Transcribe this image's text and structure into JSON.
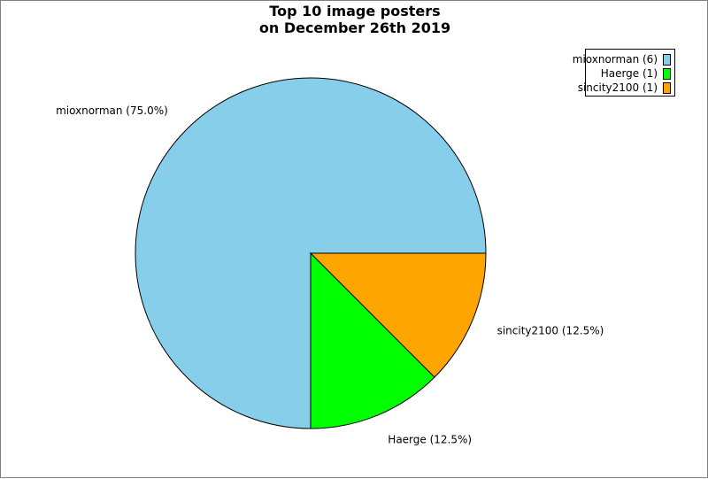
{
  "chart_data": {
    "type": "pie",
    "title": "Top 10 image posters",
    "subtitle": "on December 26th 2019",
    "legend_position": "top-right",
    "slices": [
      {
        "label": "mioxnorman",
        "value": 6,
        "percent_label": "mioxnorman (75.0%)",
        "legend_label": "mioxnorman (6)",
        "color": "#87CEEB"
      },
      {
        "label": "Haerge",
        "value": 1,
        "percent_label": "Haerge (12.5%)",
        "legend_label": "Haerge (1)",
        "color": "#00FF00"
      },
      {
        "label": "sincity2100",
        "value": 1,
        "percent_label": "sincity2100 (12.5%)",
        "legend_label": "sincity2100 (1)",
        "color": "#FFA500"
      }
    ]
  }
}
